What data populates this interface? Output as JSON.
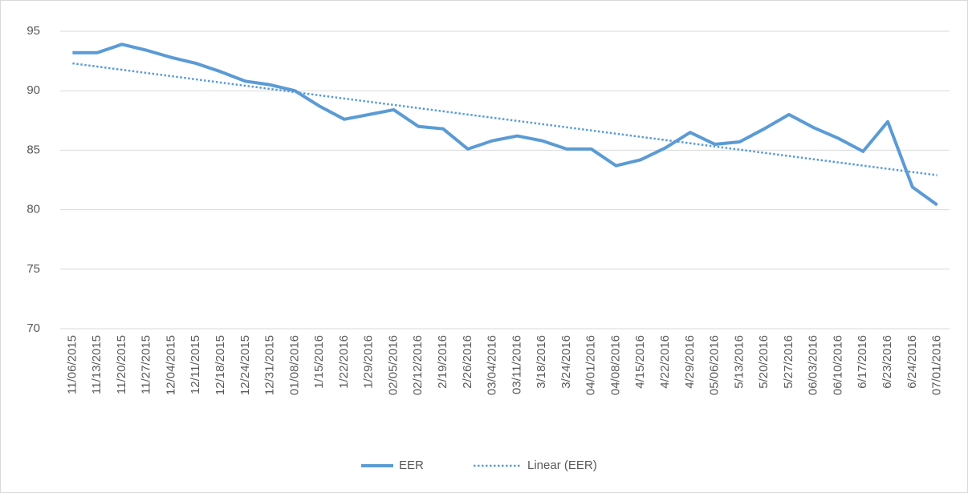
{
  "chart_data": {
    "type": "line",
    "categories": [
      "11/06/2015",
      "11/13/2015",
      "11/20/2015",
      "11/27/2015",
      "12/04/2015",
      "12/11/2015",
      "12/18/2015",
      "12/24/2015",
      "12/31/2015",
      "01/08/2016",
      "1/15/2016",
      "1/22/2016",
      "1/29/2016",
      "02/05/2016",
      "02/12/2016",
      "2/19/2016",
      "2/26/2016",
      "03/04/2016",
      "03/11/2016",
      "3/18/2016",
      "3/24/2016",
      "04/01/2016",
      "04/08/2016",
      "4/15/2016",
      "4/22/2016",
      "4/29/2016",
      "05/06/2016",
      "5/13/2016",
      "5/20/2016",
      "5/27/2016",
      "06/03/2016",
      "06/10/2016",
      "6/17/2016",
      "6/23/2016",
      "6/24/2016",
      "07/01/2016"
    ],
    "series": [
      {
        "name": "EER",
        "color": "#5b9bd5",
        "values": [
          93.2,
          93.2,
          93.9,
          93.4,
          92.8,
          92.3,
          91.6,
          90.8,
          90.5,
          90.0,
          88.7,
          87.6,
          88.0,
          88.4,
          87.0,
          86.8,
          85.1,
          85.8,
          86.2,
          85.8,
          85.1,
          85.1,
          83.7,
          84.2,
          85.2,
          86.5,
          85.5,
          85.7,
          86.8,
          88.0,
          86.9,
          86.0,
          84.9,
          87.4,
          81.9,
          80.4
        ]
      }
    ],
    "trendline": {
      "name": "Linear (EER)",
      "color": "#5b9bd5",
      "values": [
        92.3,
        82.9
      ]
    },
    "ylim": [
      70,
      95
    ],
    "yticks": [
      70,
      75,
      80,
      85,
      90,
      95
    ],
    "grid": true,
    "legend": "bottom"
  }
}
